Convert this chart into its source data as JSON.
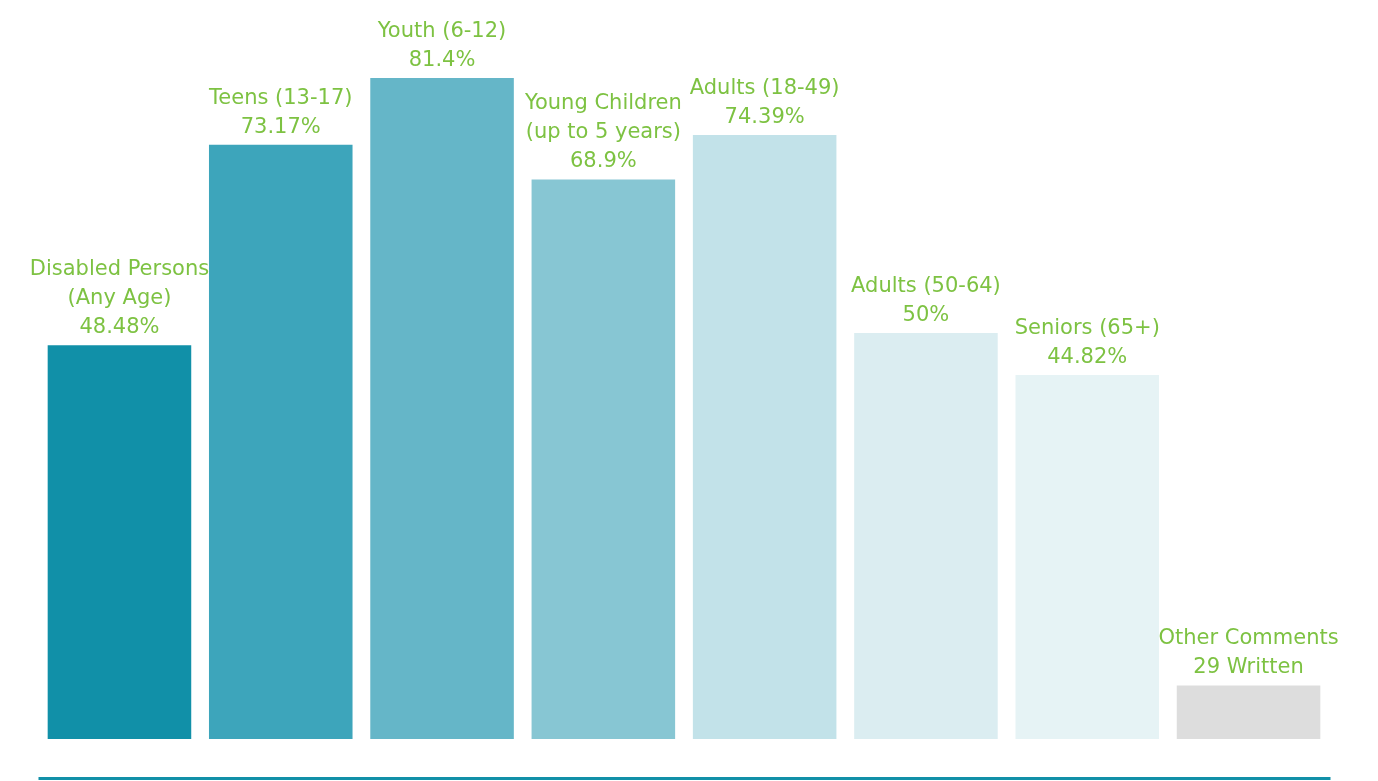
{
  "chart_data": {
    "type": "bar",
    "categories": [
      "Disabled Persons\n(Any Age)",
      "Teens (13-17)",
      "Youth (6-12)",
      "Young Children\n(up to 5 years)",
      "Adults (18-49)",
      "Adults (50-64)",
      "Seniors (65+)",
      "Other Comments\n29 Written"
    ],
    "values": [
      48.48,
      73.17,
      81.4,
      68.9,
      74.39,
      50,
      44.82,
      6.6
    ],
    "value_labels": [
      "48.48%",
      "73.17%",
      "81.4%",
      "68.9%",
      "74.39%",
      "50%",
      "44.82%",
      null
    ],
    "colors": [
      "#1190a8",
      "#3da5bb",
      "#65b6c8",
      "#87c6d3",
      "#c2e2e9",
      "#dbedf1",
      "#e6f3f5",
      "#dddddd"
    ],
    "ylim": [
      0,
      91
    ],
    "tick_labels": false,
    "grid": false
  }
}
